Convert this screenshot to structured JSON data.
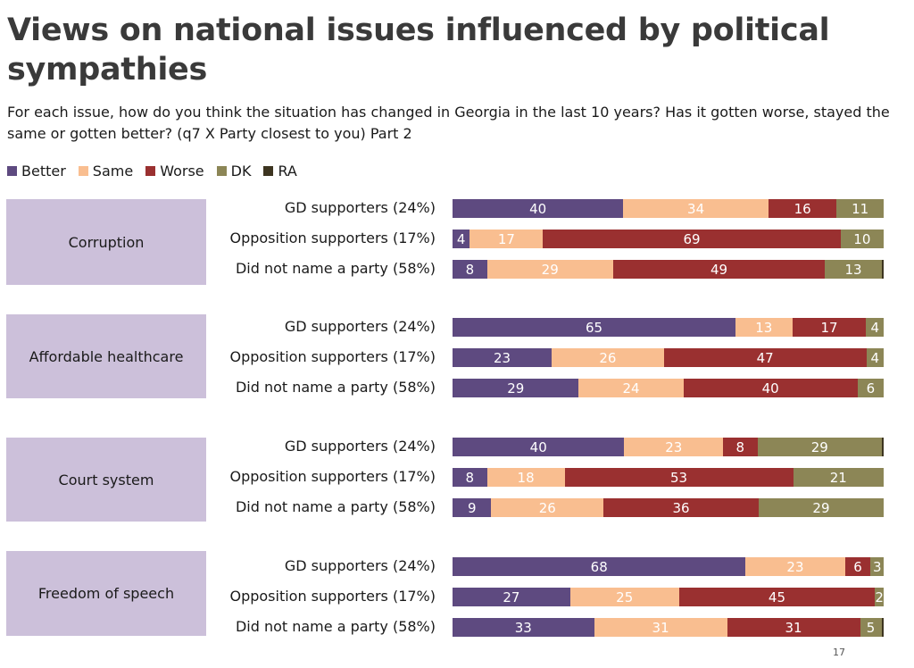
{
  "title": "Views on national issues influenced by political sympathies",
  "subtitle": "For each issue, how do you think the situation has changed in Georgia in the last 10 years? Has it gotten worse, stayed the same or gotten better? (q7 X Party closest to you) Part 2",
  "page_number": "17",
  "colors": {
    "Better": "#5e4a80",
    "Same": "#f9be90",
    "Worse": "#9a3030",
    "DK": "#8c8656",
    "RA": "#3d3520",
    "group_box": "#ccc0da"
  },
  "chart_data": {
    "type": "bar",
    "orientation": "horizontal-stacked",
    "title": "Views on national issues influenced by political sympathies",
    "legend": [
      "Better",
      "Same",
      "Worse",
      "DK",
      "RA"
    ],
    "legend_position": "top-left",
    "xlim": [
      0,
      100
    ],
    "groups": [
      {
        "name": "Corruption",
        "rows": [
          {
            "label": "GD supporters (24%)",
            "values": {
              "Better": 40,
              "Same": 34,
              "Worse": 16,
              "DK": 11,
              "RA": 0
            }
          },
          {
            "label": "Opposition supporters (17%)",
            "values": {
              "Better": 4,
              "Same": 17,
              "Worse": 69,
              "DK": 10,
              "RA": 0
            }
          },
          {
            "label": "Did not name a party (58%)",
            "values": {
              "Better": 8,
              "Same": 29,
              "Worse": 49,
              "DK": 13,
              "RA": 0.5
            }
          }
        ]
      },
      {
        "name": "Affordable healthcare",
        "rows": [
          {
            "label": "GD supporters (24%)",
            "values": {
              "Better": 65,
              "Same": 13,
              "Worse": 17,
              "DK": 4,
              "RA": 0
            }
          },
          {
            "label": "Opposition supporters (17%)",
            "values": {
              "Better": 23,
              "Same": 26,
              "Worse": 47,
              "DK": 4,
              "RA": 0
            }
          },
          {
            "label": "Did not name a party (58%)",
            "values": {
              "Better": 29,
              "Same": 24,
              "Worse": 40,
              "DK": 6,
              "RA": 0
            }
          }
        ]
      },
      {
        "name": "Court system",
        "rows": [
          {
            "label": "GD supporters (24%)",
            "values": {
              "Better": 40,
              "Same": 23,
              "Worse": 8,
              "DK": 29,
              "RA": 0.4
            }
          },
          {
            "label": "Opposition supporters (17%)",
            "values": {
              "Better": 8,
              "Same": 18,
              "Worse": 53,
              "DK": 21,
              "RA": 0
            }
          },
          {
            "label": "Did not name a party (58%)",
            "values": {
              "Better": 9,
              "Same": 26,
              "Worse": 36,
              "DK": 29,
              "RA": 0
            }
          }
        ]
      },
      {
        "name": "Freedom of speech",
        "rows": [
          {
            "label": "GD supporters (24%)",
            "values": {
              "Better": 68,
              "Same": 23,
              "Worse": 6,
              "DK": 3,
              "RA": 0
            }
          },
          {
            "label": "Opposition supporters (17%)",
            "values": {
              "Better": 27,
              "Same": 25,
              "Worse": 45,
              "DK": 2,
              "RA": 0
            }
          },
          {
            "label": "Did not name a party (58%)",
            "values": {
              "Better": 33,
              "Same": 31,
              "Worse": 31,
              "DK": 5,
              "RA": 0.5
            }
          }
        ]
      }
    ]
  }
}
